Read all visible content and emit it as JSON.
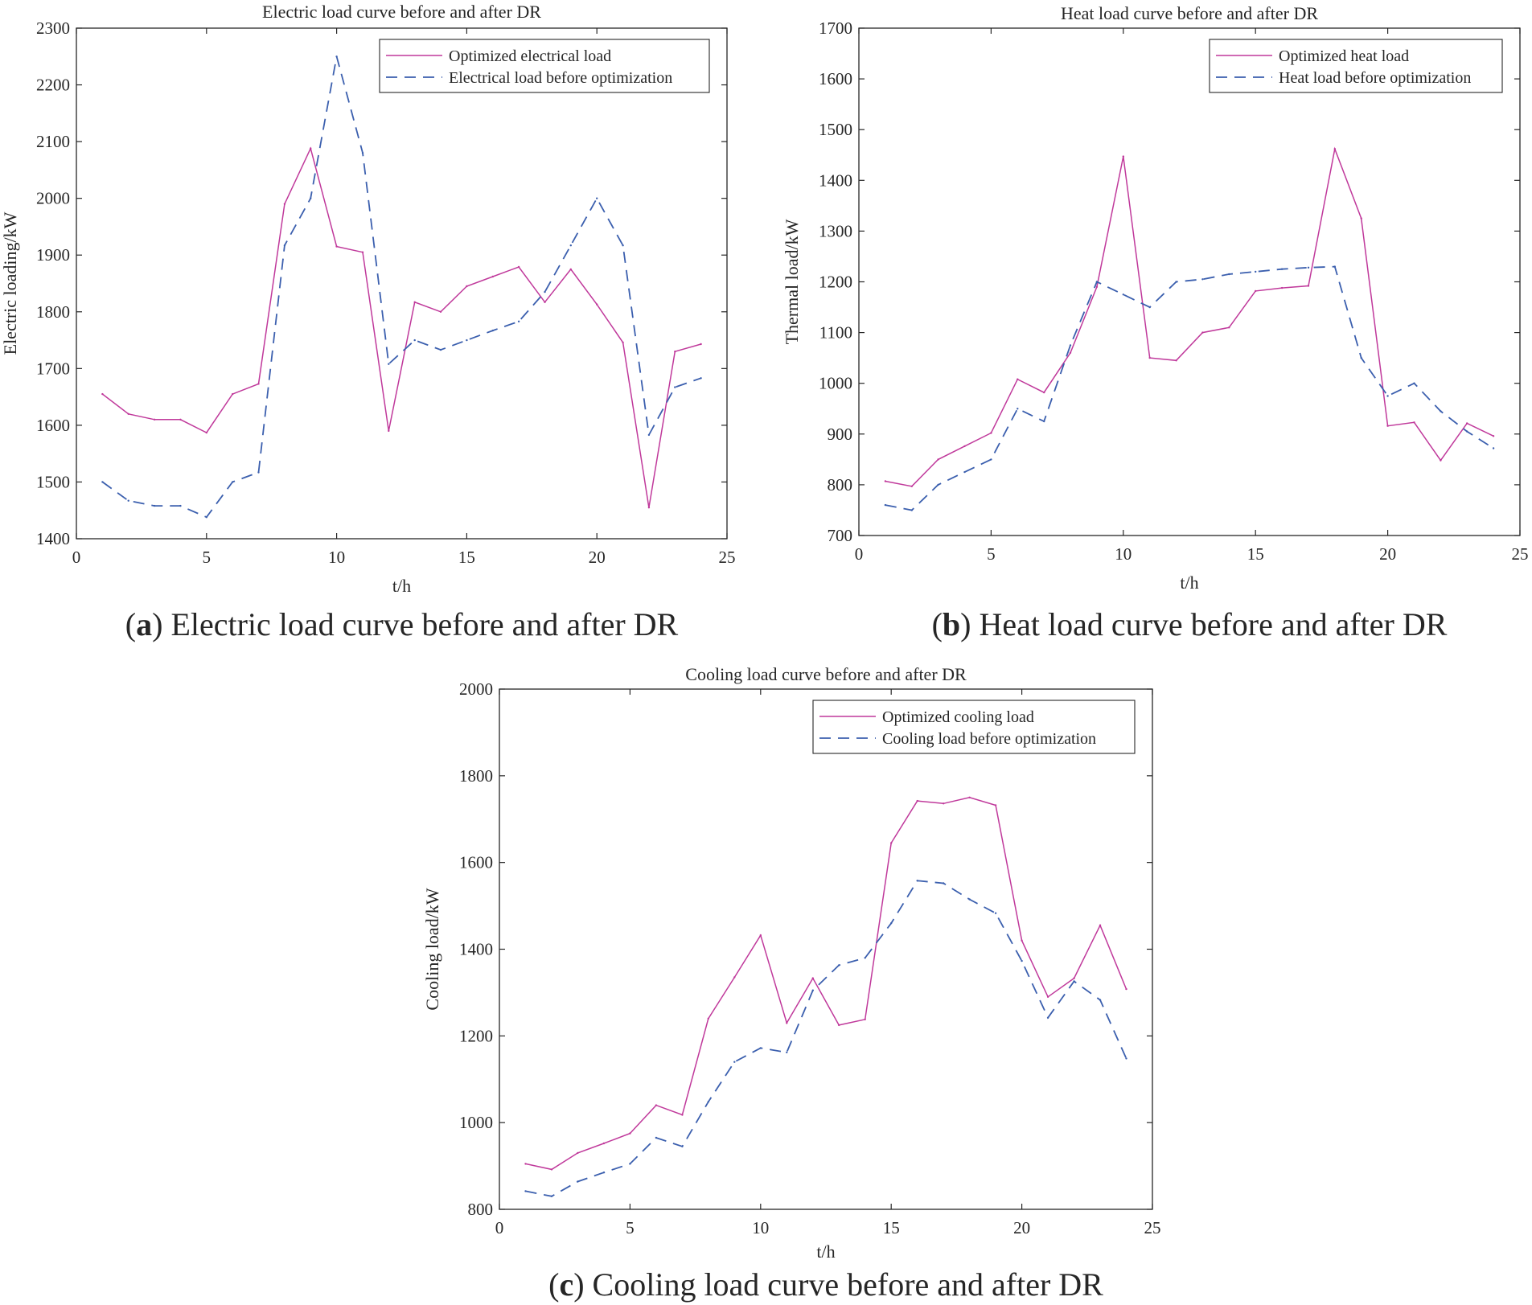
{
  "colors": {
    "optimized": "#c0399b",
    "before": "#3b5fae",
    "axis": "#262626"
  },
  "chart_data": [
    {
      "type": "line",
      "title": "Electric load curve before and after DR",
      "caption_letter": "a",
      "caption_text": " Electric load curve before and after DR",
      "xlabel": "t/h",
      "ylabel": "Electric loading/kW",
      "xlim": [
        0,
        25
      ],
      "ylim": [
        1400,
        2300
      ],
      "xticks": [
        0,
        5,
        10,
        15,
        20,
        25
      ],
      "yticks": [
        1400,
        1500,
        1600,
        1700,
        1800,
        1900,
        2000,
        2100,
        2200,
        2300
      ],
      "legend_position": "top-right",
      "x": [
        1,
        2,
        3,
        4,
        5,
        6,
        7,
        8,
        9,
        10,
        11,
        12,
        13,
        14,
        15,
        16,
        17,
        18,
        19,
        20,
        21,
        22,
        23,
        24
      ],
      "series": [
        {
          "name": "Optimized electrical load",
          "style": "solid",
          "values": [
            1655,
            1620,
            1610,
            1610,
            1587,
            1655,
            1673,
            1990,
            2088,
            1915,
            1905,
            1590,
            1817,
            1800,
            1845,
            1862,
            1879,
            1817,
            1875,
            1813,
            1746,
            1455,
            1730,
            1743
          ]
        },
        {
          "name": "Electrical load before optimization",
          "style": "dashed",
          "values": [
            1500,
            1467,
            1458,
            1458,
            1438,
            1500,
            1517,
            1917,
            2000,
            2250,
            2080,
            1708,
            1750,
            1733,
            1750,
            1767,
            1783,
            1835,
            1917,
            2000,
            1917,
            1583,
            1667,
            1683
          ]
        }
      ]
    },
    {
      "type": "line",
      "title": "Heat load curve before and after DR",
      "caption_letter": "b",
      "caption_text": " Heat load curve before and after DR",
      "xlabel": "t/h",
      "ylabel": "Thermal load/kW",
      "xlim": [
        0,
        25
      ],
      "ylim": [
        700,
        1700
      ],
      "xticks": [
        0,
        5,
        10,
        15,
        20,
        25
      ],
      "yticks": [
        700,
        800,
        900,
        1000,
        1100,
        1200,
        1300,
        1400,
        1500,
        1600,
        1700
      ],
      "legend_position": "top-right",
      "x": [
        1,
        2,
        3,
        4,
        5,
        6,
        7,
        8,
        9,
        10,
        11,
        12,
        13,
        14,
        15,
        16,
        17,
        18,
        19,
        20,
        21,
        22,
        23,
        24
      ],
      "series": [
        {
          "name": "Optimized heat load",
          "style": "solid",
          "values": [
            807,
            797,
            850,
            876,
            902,
            1008,
            982,
            1060,
            1190,
            1447,
            1050,
            1045,
            1100,
            1110,
            1182,
            1188,
            1192,
            1462,
            1325,
            916,
            923,
            848,
            921,
            896
          ]
        },
        {
          "name": "Heat load before optimization",
          "style": "dashed",
          "values": [
            760,
            750,
            800,
            825,
            850,
            950,
            925,
            1075,
            1200,
            1175,
            1150,
            1200,
            1205,
            1215,
            1220,
            1225,
            1228,
            1230,
            1050,
            975,
            1000,
            945,
            905,
            872
          ]
        }
      ]
    },
    {
      "type": "line",
      "title": "Cooling load curve before and after DR",
      "caption_letter": "c",
      "caption_text": " Cooling load curve before and after DR",
      "xlabel": "t/h",
      "ylabel": "Cooling load/kW",
      "xlim": [
        0,
        25
      ],
      "ylim": [
        800,
        2000
      ],
      "xticks": [
        0,
        5,
        10,
        15,
        20,
        25
      ],
      "yticks": [
        800,
        1000,
        1200,
        1400,
        1600,
        1800,
        2000
      ],
      "legend_position": "top-right",
      "x": [
        1,
        2,
        3,
        4,
        5,
        6,
        7,
        8,
        9,
        10,
        11,
        12,
        13,
        14,
        15,
        16,
        17,
        18,
        19,
        20,
        21,
        22,
        23,
        24
      ],
      "series": [
        {
          "name": "Optimized cooling load",
          "style": "solid",
          "values": [
            905,
            892,
            930,
            952,
            975,
            1040,
            1018,
            1240,
            1335,
            1432,
            1230,
            1333,
            1225,
            1238,
            1645,
            1742,
            1736,
            1750,
            1732,
            1420,
            1290,
            1333,
            1455,
            1308
          ]
        },
        {
          "name": "Cooling load before optimization",
          "style": "dashed",
          "values": [
            842,
            830,
            864,
            885,
            905,
            965,
            945,
            1048,
            1140,
            1172,
            1162,
            1305,
            1363,
            1380,
            1460,
            1558,
            1552,
            1515,
            1483,
            1373,
            1242,
            1326,
            1283,
            1148
          ]
        }
      ]
    }
  ]
}
